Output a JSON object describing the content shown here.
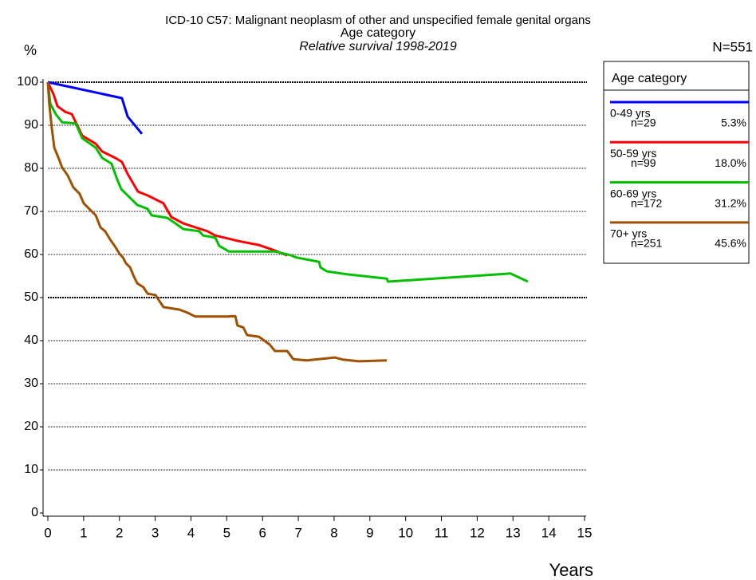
{
  "chart_data": {
    "type": "line",
    "title": "ICD-10 C57: Malignant neoplasm of other and unspecified female genital organs",
    "subtitle": "Age category",
    "subtitle2": "Relative survival 1998-2019",
    "ylabel": "%",
    "xlabel": "Years",
    "total": "N=551",
    "legend_title": "Age category",
    "legend": "right",
    "grid": true,
    "major_grid": [
      50,
      100
    ],
    "xlim": [
      0,
      15
    ],
    "ylim": [
      0,
      100
    ],
    "xticks": [
      0,
      1,
      2,
      3,
      4,
      5,
      6,
      7,
      8,
      9,
      10,
      11,
      12,
      13,
      14,
      15
    ],
    "yticks": [
      0,
      10,
      20,
      30,
      40,
      50,
      60,
      70,
      80,
      90,
      100
    ],
    "series": [
      {
        "name": "0-49 yrs",
        "n_label": "n=29",
        "share_label": "5.3%",
        "color": "#0000ff",
        "x": [
          0,
          2.07,
          2.23,
          2.63
        ],
        "values": [
          100,
          96.3,
          92,
          88
        ]
      },
      {
        "name": "50-59 yrs",
        "n_label": "n=99",
        "share_label": "18.0%",
        "color": "#ff0000",
        "x": [
          0,
          0.16,
          0.27,
          0.49,
          0.67,
          0.78,
          0.96,
          1.34,
          1.52,
          1.89,
          2.07,
          2.23,
          2.52,
          2.79,
          3.23,
          3.45,
          3.79,
          4.46,
          4.68,
          5.35,
          5.9,
          6.35,
          6.69
        ],
        "values": [
          100,
          97.2,
          94.4,
          93.1,
          92.6,
          90.7,
          87.6,
          85.7,
          83.9,
          82.4,
          81.5,
          78.7,
          74.6,
          73.7,
          71.9,
          68.7,
          67.2,
          65.4,
          64.4,
          63.1,
          62.2,
          60.9,
          59.8
        ]
      },
      {
        "name": "60-69 yrs",
        "n_label": "n=172",
        "share_label": "31.2%",
        "color": "#00c000",
        "x": [
          0,
          0.07,
          0.22,
          0.4,
          0.78,
          0.96,
          1.34,
          1.52,
          1.78,
          1.94,
          2.05,
          2.23,
          2.5,
          2.79,
          2.9,
          3.34,
          3.57,
          3.79,
          4.23,
          4.34,
          4.68,
          4.79,
          5.06,
          6.35,
          6.8,
          6.95,
          7.58,
          7.62,
          7.8,
          8.36,
          9.47,
          9.51,
          12.93,
          13.42
        ],
        "values": [
          100,
          95,
          92.6,
          90.7,
          90.4,
          87,
          84.8,
          82.4,
          81.1,
          77.4,
          75.2,
          73.7,
          71.5,
          70.6,
          69.1,
          68.5,
          67.2,
          65.9,
          65.4,
          64.4,
          63.9,
          62,
          60.7,
          60.7,
          59.8,
          59.3,
          58.3,
          57,
          56.1,
          55.4,
          54.4,
          53.7,
          55.6,
          53.7
        ]
      },
      {
        "name": "70+ yrs",
        "n_label": "n=251",
        "share_label": "45.6%",
        "color": "#a05000",
        "x": [
          0,
          0.04,
          0.11,
          0.18,
          0.29,
          0.4,
          0.56,
          0.71,
          0.89,
          1,
          1.18,
          1.34,
          1.47,
          1.6,
          1.74,
          1.89,
          2,
          2.1,
          2.18,
          2.3,
          2.41,
          2.5,
          2.67,
          2.79,
          3.01,
          3.23,
          3.68,
          3.9,
          4.12,
          5.01,
          5.24,
          5.3,
          5.46,
          5.57,
          5.9,
          6.2,
          6.35,
          6.69,
          6.86,
          7.24,
          8.02,
          8.25,
          8.69,
          9.47
        ],
        "values": [
          100,
          95,
          89.4,
          84.8,
          82.6,
          80.2,
          78.3,
          75.6,
          74.1,
          71.9,
          70.4,
          69.1,
          66.3,
          65.4,
          63.5,
          61.7,
          60.2,
          59.3,
          58,
          57,
          54.8,
          53.3,
          52.4,
          50.9,
          50.6,
          47.8,
          47.2,
          46.5,
          45.6,
          45.6,
          45.7,
          43.5,
          43.1,
          41.3,
          40.9,
          39.1,
          37.6,
          37.6,
          35.7,
          35.4,
          36.1,
          35.6,
          35.2,
          35.4
        ]
      }
    ]
  }
}
